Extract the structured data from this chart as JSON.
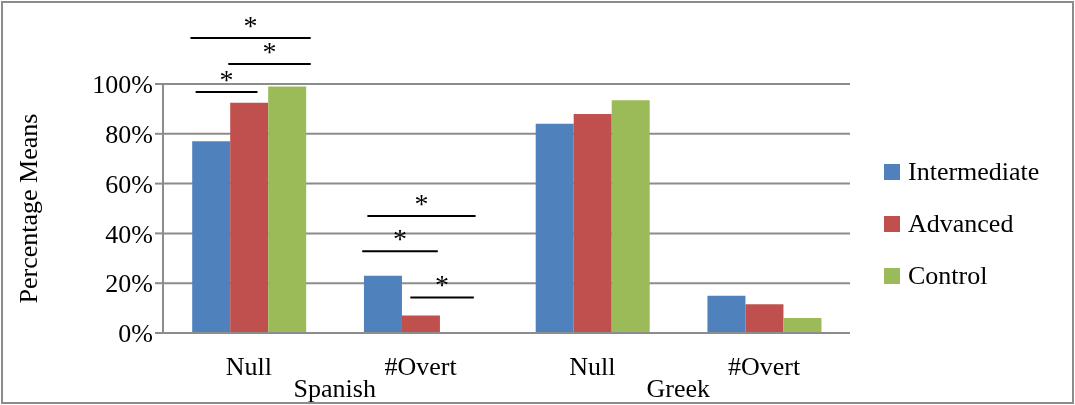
{
  "chart_data": {
    "type": "bar",
    "ylabel": "Percentage Means",
    "categories": [
      "Null",
      "#Overt",
      "Null",
      "#Overt"
    ],
    "series": [
      {
        "name": "Intermediate",
        "color": "#4f81bd",
        "values": [
          77,
          23,
          84,
          15
        ]
      },
      {
        "name": "Advanced",
        "color": "#c0504d",
        "values": [
          92.5,
          7,
          88,
          11.5
        ]
      },
      {
        "name": "Control",
        "color": "#9bbb59",
        "values": [
          99,
          0.4,
          93.5,
          6
        ]
      }
    ],
    "ylim": [
      0,
      100
    ],
    "yticks": [
      {
        "value": 0,
        "label": "0%"
      },
      {
        "value": 20,
        "label": "20%"
      },
      {
        "value": 40,
        "label": "40%"
      },
      {
        "value": 60,
        "label": "60%"
      },
      {
        "value": 80,
        "label": "80%"
      },
      {
        "value": 100,
        "label": "100%"
      }
    ],
    "grid": "y",
    "legend": "right",
    "annotations": [
      "*",
      "*",
      "*",
      "*",
      "*",
      "*",
      "Spanish",
      "Greek"
    ]
  }
}
